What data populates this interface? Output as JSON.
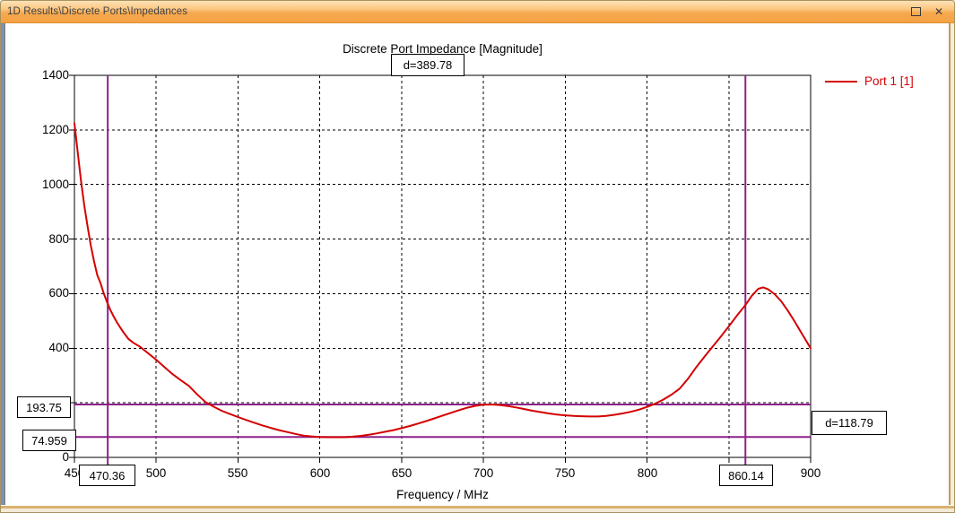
{
  "window": {
    "title": "1D Results\\Discrete Ports\\Impedances",
    "close_icon": "✕"
  },
  "legend": {
    "label": "Port 1 [1]"
  },
  "chart_data": {
    "type": "line",
    "title": "Discrete Port Impedance [Magnitude]",
    "xlabel": "Frequency / MHz",
    "ylabel": "",
    "xlim": [
      450,
      900
    ],
    "ylim": [
      0,
      1400
    ],
    "grid": "dashed",
    "legend_position": "top-right",
    "x_gridlines": [
      500,
      550,
      600,
      650,
      700,
      750,
      800,
      850
    ],
    "y_gridlines": [
      200,
      400,
      600,
      800,
      1000,
      1200
    ],
    "x_ticks": [
      450,
      500,
      550,
      600,
      650,
      700,
      750,
      800,
      850,
      900
    ],
    "y_ticks": [
      0,
      200,
      400,
      600,
      800,
      1000,
      1200,
      1400
    ],
    "x_tick_labels": [
      {
        "v": 450,
        "t": "450"
      },
      {
        "v": 500,
        "t": "500"
      },
      {
        "v": 550,
        "t": "550"
      },
      {
        "v": 600,
        "t": "600"
      },
      {
        "v": 650,
        "t": "650"
      },
      {
        "v": 700,
        "t": "700"
      },
      {
        "v": 750,
        "t": "750"
      },
      {
        "v": 800,
        "t": "800"
      },
      {
        "v": 900,
        "t": "900"
      }
    ],
    "y_tick_labels": [
      {
        "v": 0,
        "t": "0"
      },
      {
        "v": 400,
        "t": "400"
      },
      {
        "v": 600,
        "t": "600"
      },
      {
        "v": 800,
        "t": "800"
      },
      {
        "v": 1000,
        "t": "1000"
      },
      {
        "v": 1200,
        "t": "1200"
      },
      {
        "v": 1400,
        "t": "1400"
      }
    ],
    "series": [
      {
        "name": "Port 1 [1]",
        "color": "#d40000",
        "points": [
          [
            450,
            1225
          ],
          [
            452,
            1120
          ],
          [
            454,
            1015
          ],
          [
            456,
            925
          ],
          [
            458,
            848
          ],
          [
            460,
            778
          ],
          [
            462,
            718
          ],
          [
            464,
            668
          ],
          [
            466,
            638
          ],
          [
            468,
            600
          ],
          [
            470,
            568
          ],
          [
            472,
            540
          ],
          [
            474,
            516
          ],
          [
            476,
            495
          ],
          [
            478,
            476
          ],
          [
            480,
            458
          ],
          [
            483,
            434
          ],
          [
            486,
            420
          ],
          [
            490,
            406
          ],
          [
            495,
            382
          ],
          [
            500,
            358
          ],
          [
            505,
            331
          ],
          [
            510,
            305
          ],
          [
            515,
            283
          ],
          [
            520,
            262
          ],
          [
            525,
            231
          ],
          [
            530,
            203
          ],
          [
            535,
            186
          ],
          [
            540,
            171
          ],
          [
            545,
            159
          ],
          [
            550,
            148
          ],
          [
            555,
            137
          ],
          [
            560,
            127
          ],
          [
            565,
            117
          ],
          [
            570,
            108
          ],
          [
            575,
            100
          ],
          [
            580,
            93
          ],
          [
            585,
            86
          ],
          [
            590,
            80
          ],
          [
            595,
            77
          ],
          [
            600,
            75
          ],
          [
            605,
            74
          ],
          [
            610,
            74
          ],
          [
            615,
            74
          ],
          [
            620,
            76
          ],
          [
            625,
            79
          ],
          [
            630,
            83
          ],
          [
            635,
            88
          ],
          [
            640,
            94
          ],
          [
            645,
            100
          ],
          [
            650,
            107
          ],
          [
            655,
            115
          ],
          [
            660,
            124
          ],
          [
            665,
            133
          ],
          [
            670,
            143
          ],
          [
            675,
            153
          ],
          [
            680,
            163
          ],
          [
            685,
            173
          ],
          [
            690,
            182
          ],
          [
            695,
            189
          ],
          [
            700,
            193
          ],
          [
            705,
            194
          ],
          [
            710,
            192
          ],
          [
            715,
            188
          ],
          [
            720,
            183
          ],
          [
            725,
            177
          ],
          [
            730,
            171
          ],
          [
            735,
            166
          ],
          [
            740,
            161
          ],
          [
            745,
            157
          ],
          [
            750,
            154
          ],
          [
            755,
            152
          ],
          [
            760,
            151
          ],
          [
            765,
            150
          ],
          [
            770,
            150
          ],
          [
            775,
            152
          ],
          [
            780,
            156
          ],
          [
            785,
            161
          ],
          [
            790,
            167
          ],
          [
            795,
            175
          ],
          [
            800,
            185
          ],
          [
            805,
            197
          ],
          [
            810,
            212
          ],
          [
            815,
            230
          ],
          [
            820,
            252
          ],
          [
            825,
            288
          ],
          [
            830,
            330
          ],
          [
            835,
            368
          ],
          [
            840,
            405
          ],
          [
            845,
            442
          ],
          [
            850,
            480
          ],
          [
            855,
            520
          ],
          [
            860,
            557
          ],
          [
            864,
            592
          ],
          [
            868,
            618
          ],
          [
            871,
            623
          ],
          [
            874,
            616
          ],
          [
            878,
            598
          ],
          [
            882,
            572
          ],
          [
            886,
            538
          ],
          [
            890,
            500
          ],
          [
            895,
            450
          ],
          [
            900,
            400
          ]
        ]
      }
    ]
  },
  "markers": {
    "color": "#8e2189",
    "vertical": [
      {
        "value": 470.36,
        "label": "470.36"
      },
      {
        "value": 860.14,
        "label": "860.14"
      }
    ],
    "horizontal": [
      {
        "value": 193.75,
        "label": "193.75"
      },
      {
        "value": 74.959,
        "label": "74.959"
      }
    ],
    "delta_x": {
      "label": "d=389.78"
    },
    "delta_y": {
      "label": "d=118.79"
    }
  },
  "colors": {
    "curve": "#d40000",
    "marker": "#8e2189",
    "titlebar_top": "#fde2b8",
    "titlebar_bottom": "#f5a145"
  }
}
